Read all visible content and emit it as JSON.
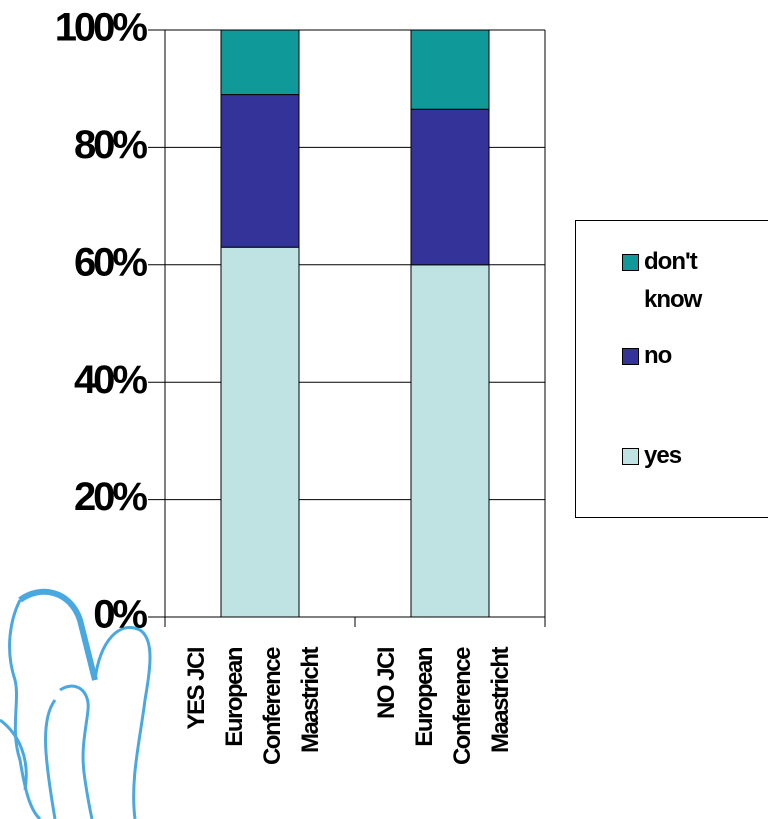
{
  "chart_data": {
    "type": "stacked_bar",
    "categories": [
      [
        "YES JCI",
        "European",
        "Conference",
        "Maastricht"
      ],
      [
        "NO JCI",
        "European",
        "Conference",
        "Maastricht"
      ]
    ],
    "series": [
      {
        "name": "yes",
        "color": "#bfe3e3",
        "values": [
          63,
          60
        ]
      },
      {
        "name": "no",
        "color": "#333399",
        "values": [
          26,
          26.5
        ]
      },
      {
        "name": "don't know",
        "color": "#0f9999",
        "values": [
          11,
          13.5
        ]
      }
    ],
    "ylim": [
      0,
      100
    ],
    "yticks": [
      {
        "value": 0,
        "label": "0%"
      },
      {
        "value": 20,
        "label": "20%"
      },
      {
        "value": 40,
        "label": "40%"
      },
      {
        "value": 60,
        "label": "60%"
      },
      {
        "value": 80,
        "label": "80%"
      },
      {
        "value": 100,
        "label": "100%"
      }
    ],
    "grid": true,
    "legend": "right"
  }
}
